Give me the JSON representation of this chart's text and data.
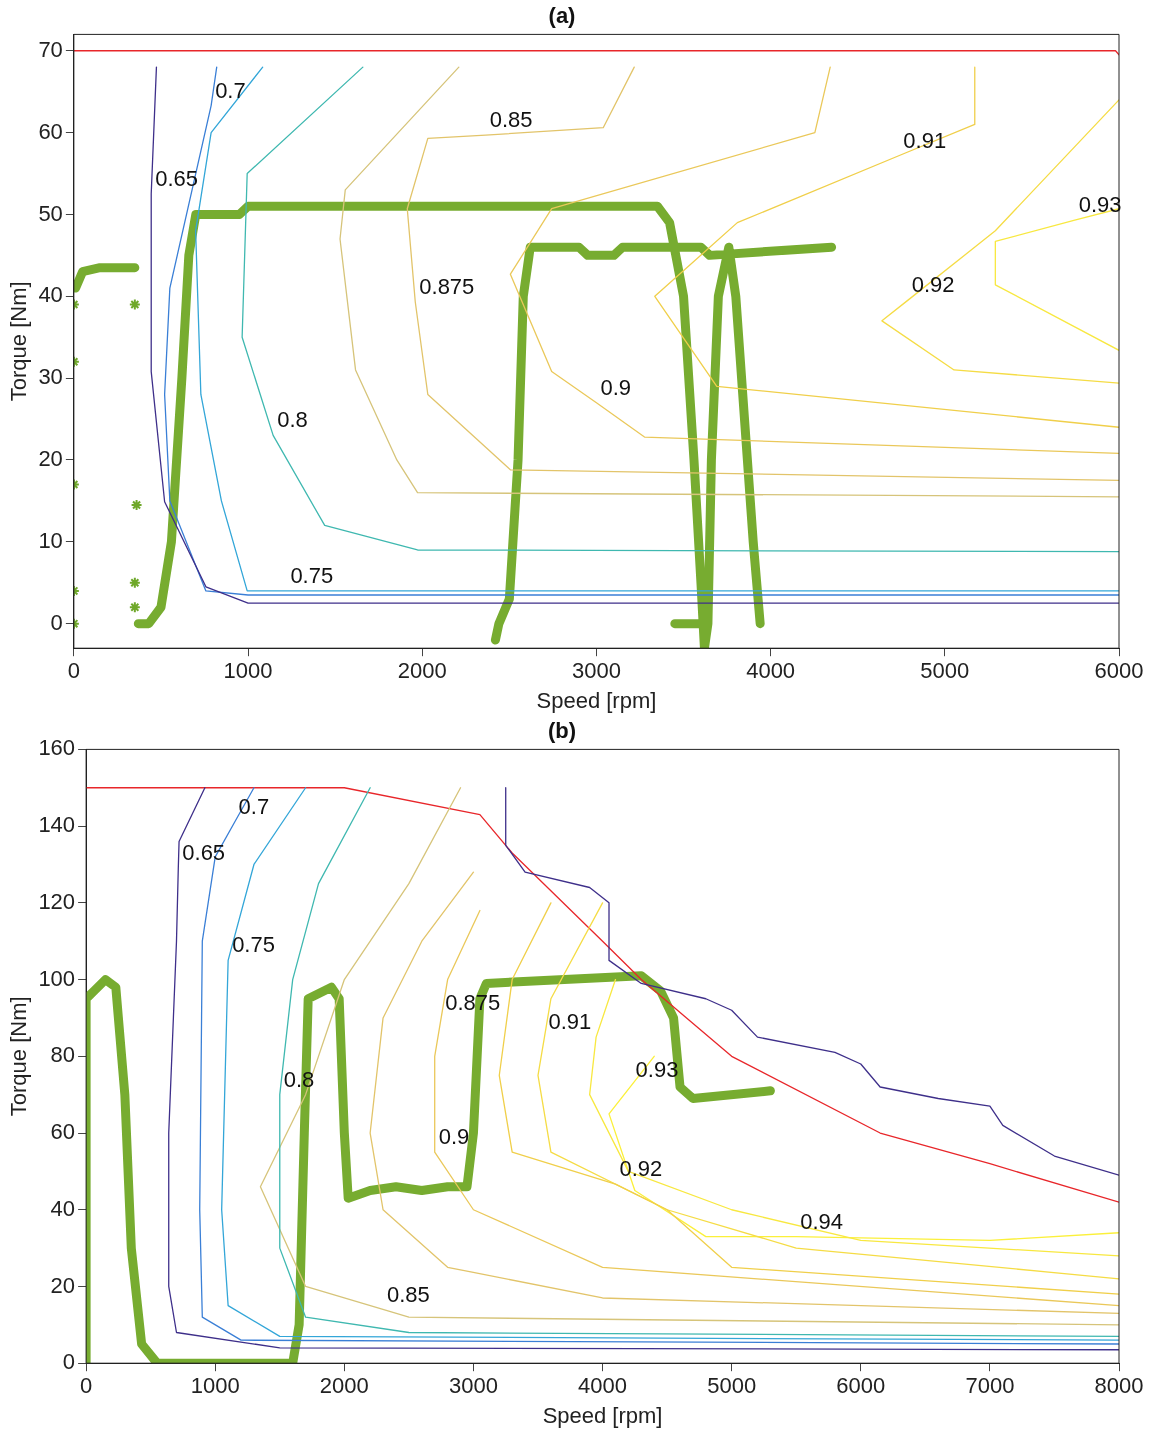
{
  "chart_data": [
    {
      "type": "line",
      "title": "(a)",
      "xlabel": "Speed [rpm]",
      "ylabel": "Torque [Nm]",
      "xlim": [
        0,
        6000
      ],
      "ylim": [
        -3,
        72
      ],
      "xticks": [
        0,
        1000,
        2000,
        3000,
        4000,
        5000,
        6000
      ],
      "yticks": [
        0,
        10,
        20,
        30,
        40,
        50,
        60,
        70
      ],
      "marker": "none",
      "series": [
        {
          "color": "#3e2f8a",
          "x": [
            474,
            444,
            444,
            521,
            758,
            1000,
            6000
          ],
          "values": [
            68,
            52.5,
            30.8,
            14.9,
            4.5,
            2.5,
            2.5
          ]
        },
        {
          "color": "#3a7fd6",
          "x": [
            820,
            788,
            551,
            521,
            551,
            758,
            1000,
            6000
          ],
          "values": [
            68,
            63.3,
            41,
            28,
            15,
            4,
            3.5,
            3.5
          ]
        },
        {
          "color": "#33a6d8",
          "x": [
            1084,
            788,
            699,
            729,
            847,
            995,
            6000
          ],
          "values": [
            68,
            60,
            48,
            28,
            15,
            4,
            4
          ]
        },
        {
          "color": "#3fb8b0",
          "x": [
            1659,
            995,
            966,
            1144,
            1440,
            1973,
            6000
          ],
          "values": [
            68,
            55,
            35,
            23,
            12,
            9,
            8.8
          ]
        },
        {
          "color": "#d6c47a",
          "x": [
            2210,
            1558,
            1528,
            1617,
            1854,
            1973,
            6000
          ],
          "values": [
            68,
            53,
            47,
            31,
            20,
            16,
            15.5
          ]
        },
        {
          "color": "#e2c46a",
          "x": [
            3217,
            3039,
            2364,
            2032,
            1914,
            1960,
            2032,
            2506,
            6000
          ],
          "values": [
            68,
            60.6,
            59.7,
            59.3,
            50.7,
            39.3,
            28,
            18.8,
            17.5
          ]
        },
        {
          "color": "#eac85a",
          "x": [
            4342,
            4254,
            2743,
            2506,
            2743,
            3000,
            3276,
            6000
          ],
          "values": [
            68,
            60,
            50.7,
            42.7,
            30.8,
            27,
            22.8,
            20.8
          ]
        },
        {
          "color": "#f0cf4a",
          "x": [
            5172,
            5172,
            4739,
            3809,
            3335,
            3691,
            6000
          ],
          "values": [
            68,
            61,
            57.2,
            49,
            40,
            29,
            24
          ]
        },
        {
          "color": "#f5dc45",
          "x": [
            6000,
            5290,
            4787,
            4639,
            5053,
            6000
          ],
          "values": [
            64,
            48,
            39.5,
            37,
            31,
            29.4
          ]
        },
        {
          "color": "#f8e840",
          "x": [
            6000,
            5746,
            5290,
            5290,
            6000
          ],
          "values": [
            50.7,
            49.3,
            46.7,
            41.4,
            33.4
          ]
        },
        {
          "color": "#e8262a",
          "x": [
            0,
            5980,
            6000
          ],
          "values": [
            70,
            70,
            69.5
          ]
        },
        {
          "type": "scatter",
          "marker": "cross",
          "color": "#6fa82a",
          "x": [
            0,
            0,
            0,
            0,
            0,
            350,
            360,
            350,
            350
          ],
          "values": [
            0,
            4,
            17,
            32,
            39,
            39,
            14.5,
            5,
            2
          ]
        },
        {
          "marker": "none",
          "color": "#77ac30",
          "x": [
            10,
            50,
            150,
            350,
            null,
            370,
            430,
            500,
            560,
            620,
            660,
            700,
            950,
            1000,
            3350,
            3420,
            3500,
            3560,
            3600,
            3620,
            3640,
            3660,
            3700,
            3760,
            3800,
            3900,
            3940,
            null,
            2420,
            2440,
            2500,
            2550,
            2580,
            2620,
            2900,
            2950,
            3100,
            3150,
            3600,
            3650,
            4350,
            null,
            3450,
            3600
          ],
          "values": [
            41,
            43,
            43.5,
            43.5,
            null,
            0,
            0,
            2,
            10,
            30,
            45,
            50,
            50,
            51,
            51,
            49,
            40,
            20,
            5,
            -3,
            0,
            20,
            40,
            46,
            40,
            10,
            0,
            null,
            -2,
            0,
            3,
            20,
            40,
            46,
            46,
            45,
            45,
            46,
            46,
            45,
            46,
            null,
            0,
            0
          ]
        }
      ],
      "annotations": [
        {
          "text": "0.7",
          "x": 788,
          "y": 63.3
        },
        {
          "text": "0.85",
          "x": 2364,
          "y": 59.7
        },
        {
          "text": "0.91",
          "x": 4739,
          "y": 57.2
        },
        {
          "text": "0.65",
          "x": 444,
          "y": 52.5
        },
        {
          "text": "0.875",
          "x": 1960,
          "y": 39.3
        },
        {
          "text": "0.92",
          "x": 4787,
          "y": 39.5
        },
        {
          "text": "0.93",
          "x": 5746,
          "y": 49.3
        },
        {
          "text": "0.9",
          "x": 3000,
          "y": 27
        },
        {
          "text": "0.8",
          "x": 1144,
          "y": 23
        },
        {
          "text": "0.75",
          "x": 1220,
          "y": 4
        }
      ]
    },
    {
      "type": "line",
      "title": "(b)",
      "xlabel": "Speed [rpm]",
      "ylabel": "Torque [Nm]",
      "xlim": [
        0,
        8000
      ],
      "ylim": [
        0,
        160
      ],
      "xticks": [
        0,
        1000,
        2000,
        3000,
        4000,
        5000,
        6000,
        7000,
        8000
      ],
      "yticks": [
        0,
        20,
        40,
        60,
        80,
        100,
        120,
        140,
        160
      ],
      "marker": "none",
      "series": [
        {
          "color": "#3e2f8a",
          "x": [
            920,
            720,
            714,
            700,
            640,
            640,
            700,
            1500,
            8000
          ],
          "values": [
            150,
            136,
            129,
            110,
            60,
            20,
            8,
            4,
            3.5
          ]
        },
        {
          "color": "#3e2f8a",
          "x": [
            3250,
            3250,
            3400,
            3900,
            4050,
            4050,
            4300,
            4800,
            5000,
            5200,
            5800,
            6000,
            6150,
            6600,
            7000,
            7100,
            7500,
            8000
          ],
          "values": [
            150,
            135,
            128,
            124,
            120,
            105,
            99,
            95,
            92,
            85,
            81,
            78,
            72,
            69,
            67,
            62,
            54,
            49
          ]
        },
        {
          "color": "#3a7fd6",
          "x": [
            1300,
            1150,
            1000,
            900,
            880,
            900,
            1200,
            8000
          ],
          "values": [
            150,
            141,
            132,
            110,
            40,
            12,
            6,
            5
          ]
        },
        {
          "color": "#33a6d8",
          "x": [
            1700,
            1300,
            1100,
            1050,
            1100,
            1500,
            8000
          ],
          "values": [
            150,
            130,
            105,
            40,
            15,
            7,
            6
          ]
        },
        {
          "color": "#3fb8b0",
          "x": [
            2200,
            1800,
            1600,
            1500,
            1500,
            1700,
            2500,
            8000
          ],
          "values": [
            150,
            125,
            100,
            70,
            30,
            12,
            8,
            7
          ]
        },
        {
          "color": "#d6c47a",
          "x": [
            2900,
            2500,
            2000,
            1700,
            1350,
            1700,
            2299,
            2500,
            8000
          ],
          "values": [
            150,
            125,
            100,
            70,
            46,
            20,
            14,
            12,
            10
          ]
        },
        {
          "color": "#e2c46a",
          "x": [
            3000,
            2600,
            2300,
            2200,
            2300,
            2800,
            4000,
            8000
          ],
          "values": [
            128,
            110,
            90,
            60,
            40,
            25,
            17,
            13
          ]
        },
        {
          "color": "#eac85a",
          "x": [
            3050,
            2800,
            2750,
            2700,
            2700,
            3000,
            4000,
            8000
          ],
          "values": [
            118,
            100,
            90,
            80,
            55,
            40,
            25,
            15
          ]
        },
        {
          "color": "#f0cf4a",
          "x": [
            3600,
            3300,
            3200,
            3300,
            4100,
            4500,
            5000,
            8000
          ],
          "values": [
            120,
            100,
            75,
            55,
            46.7,
            40,
            25,
            18
          ]
        },
        {
          "color": "#f5dc45",
          "x": [
            4000,
            3600,
            3550,
            3500,
            3600,
            4500,
            5500,
            8000
          ],
          "values": [
            120,
            95,
            85,
            75,
            55,
            40,
            30,
            22
          ]
        },
        {
          "color": "#f8e840",
          "x": [
            4100,
            3950,
            3900,
            4200,
            5000,
            6000,
            8000
          ],
          "values": [
            100,
            85,
            70,
            50,
            40,
            32,
            28
          ]
        },
        {
          "color": "#fbf03a",
          "x": [
            4400,
            4225,
            4050,
            4250,
            4800,
            5500,
            7000,
            8000
          ],
          "values": [
            80,
            72.5,
            65,
            45,
            33,
            33,
            32,
            34
          ]
        },
        {
          "color": "#e8262a",
          "x": [
            0,
            2000,
            3050,
            3300,
            4000,
            4300,
            5000,
            6150,
            7000,
            8000
          ],
          "values": [
            150,
            150,
            143,
            133,
            110,
            100,
            80,
            60,
            52,
            42
          ]
        },
        {
          "marker": "none",
          "color": "#77ac30",
          "x": [
            0,
            0,
            60,
            150,
            230,
            300,
            350,
            430,
            550,
            1600,
            1650,
            1690,
            1720,
            1900,
            1960,
            2000,
            2030,
            2200,
            2400,
            2600,
            2800,
            2950,
            3000,
            3050,
            3100,
            4300,
            4450,
            4550,
            4600,
            4700,
            5300
          ],
          "values": [
            0,
            95,
            97,
            100,
            98,
            70,
            30,
            5,
            0,
            0,
            10,
            60,
            95,
            98,
            95,
            60,
            43,
            45,
            46,
            45,
            46,
            46,
            60,
            95,
            99,
            101,
            97,
            90,
            72,
            69,
            71
          ]
        }
      ],
      "annotations": [
        {
          "text": "0.7",
          "x": 1150,
          "y": 141
        },
        {
          "text": "0.65",
          "x": 714,
          "y": 129
        },
        {
          "text": "0.75",
          "x": 1100,
          "y": 105
        },
        {
          "text": "0.875",
          "x": 2750,
          "y": 90
        },
        {
          "text": "0.91",
          "x": 3550,
          "y": 85
        },
        {
          "text": "0.8",
          "x": 1500,
          "y": 70
        },
        {
          "text": "0.93",
          "x": 4225,
          "y": 72.5
        },
        {
          "text": "0.9",
          "x": 2700,
          "y": 55
        },
        {
          "text": "0.94",
          "x": 5500,
          "y": 33
        },
        {
          "text": "0.92",
          "x": 4100,
          "y": 46.7
        },
        {
          "text": "0.85",
          "x": 2299,
          "y": 14
        }
      ]
    }
  ]
}
